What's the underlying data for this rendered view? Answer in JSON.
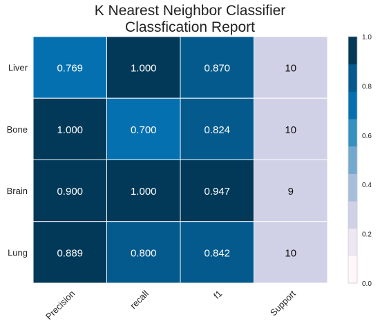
{
  "chart_data": {
    "type": "heatmap",
    "title_lines": [
      "K Nearest Neighbor Classifier",
      "Classfication Report"
    ],
    "rows": [
      "Liver",
      "Bone",
      "Brain",
      "Lung"
    ],
    "columns": [
      "Precision",
      "recall",
      "f1",
      "Support"
    ],
    "values": [
      [
        0.769,
        1.0,
        0.87,
        10
      ],
      [
        1.0,
        0.7,
        0.824,
        10
      ],
      [
        0.9,
        1.0,
        0.947,
        9
      ],
      [
        0.889,
        0.8,
        0.842,
        10
      ]
    ],
    "cell_labels": [
      [
        "0.769",
        "1.000",
        "0.870",
        "10"
      ],
      [
        "1.000",
        "0.700",
        "0.824",
        "10"
      ],
      [
        "0.900",
        "1.000",
        "0.947",
        "9"
      ],
      [
        "0.889",
        "0.800",
        "0.842",
        "10"
      ]
    ],
    "colorbar": {
      "range": [
        0,
        1
      ],
      "ticks": [
        "0.0",
        "0.2",
        "0.4",
        "0.6",
        "0.8",
        "1.0"
      ],
      "colors": [
        "#fff7fb",
        "#ece7f2",
        "#d0d1e6",
        "#a6bddb",
        "#74a9cf",
        "#3690c0",
        "#0570b0",
        "#045a8d",
        "#023858"
      ]
    },
    "support_color": "#d0d1e6"
  }
}
